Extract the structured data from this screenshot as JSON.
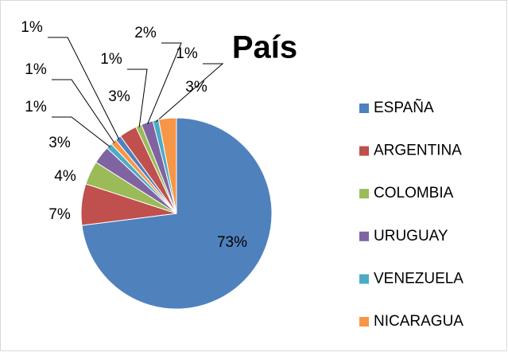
{
  "chart_data": {
    "type": "pie",
    "title": "País",
    "categories": [
      "ESPAÑA",
      "ARGENTINA",
      "COLOMBIA",
      "URUGUAY",
      "VENEZUELA",
      "NICARAGUA",
      null,
      null,
      null,
      null,
      null,
      null
    ],
    "values": [
      73,
      7,
      4,
      3,
      1,
      1,
      1,
      3,
      1,
      2,
      1,
      3
    ],
    "value_labels": [
      "73%",
      "7%",
      "4%",
      "3%",
      "1%",
      "1%",
      "1%",
      "3%",
      "1%",
      "2%",
      "1%",
      "3%"
    ],
    "colors": [
      "#4f81bd",
      "#c0504d",
      "#9bbb59",
      "#8064a2",
      "#4bacc6",
      "#f79646",
      "#4f81bd",
      "#c0504d",
      "#9bbb59",
      "#8064a2",
      "#4bacc6",
      "#f79646"
    ],
    "legend": "right"
  }
}
